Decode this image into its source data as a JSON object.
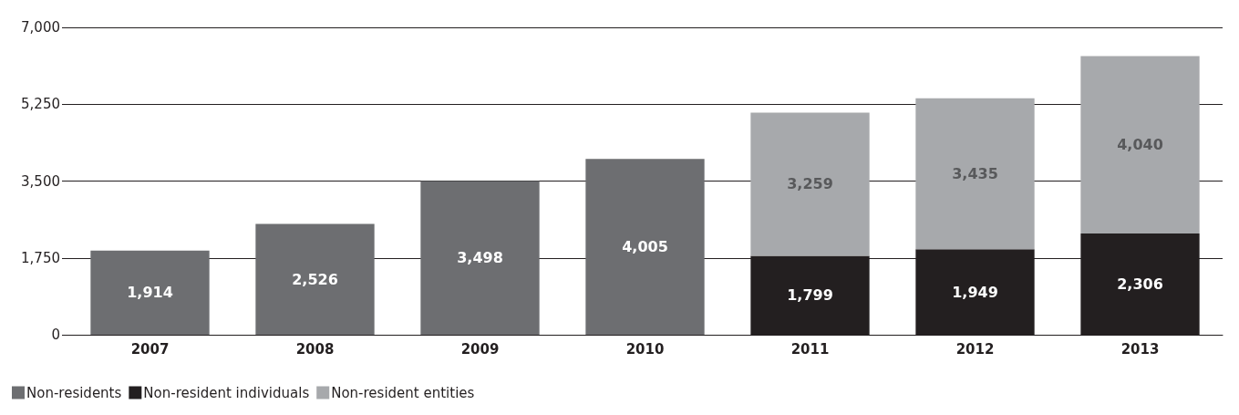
{
  "chart_data": {
    "type": "bar",
    "stacked": true,
    "categories": [
      "2007",
      "2008",
      "2009",
      "2010",
      "2011",
      "2012",
      "2013"
    ],
    "series": [
      {
        "name": "Non-residents",
        "color": "#6d6e71",
        "values": [
          1914,
          2526,
          3498,
          4005,
          null,
          null,
          null
        ],
        "value_labels": [
          "1,914",
          "2,526",
          "3,498",
          "4,005",
          null,
          null,
          null
        ]
      },
      {
        "name": "Non-resident individuals",
        "color": "#231f20",
        "values": [
          null,
          null,
          null,
          null,
          1799,
          1949,
          2306
        ],
        "value_labels": [
          null,
          null,
          null,
          null,
          "1,799",
          "1,949",
          "2,306"
        ]
      },
      {
        "name": "Non-resident entities",
        "color": "#a7a9ac",
        "values": [
          null,
          null,
          null,
          null,
          3259,
          3435,
          4040
        ],
        "value_labels": [
          null,
          null,
          null,
          null,
          "3,259",
          "3,435",
          "4,040"
        ]
      }
    ],
    "ylim": [
      0,
      7000
    ],
    "yticks": [
      0,
      {
        "value": 1750,
        "label": "1,750"
      },
      {
        "value": 3500,
        "label": "3,500"
      },
      {
        "value": 5250,
        "label": "5,250"
      },
      {
        "value": 7000,
        "label": "7,000"
      }
    ],
    "grid": "y",
    "legend": "bottom left"
  }
}
